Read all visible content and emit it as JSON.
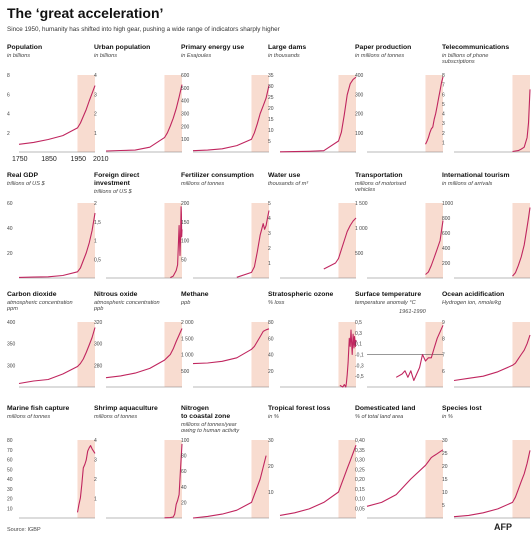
{
  "header": {
    "title": "The ‘great acceleration’",
    "subtitle": "Since 1950, humanity has shifted into high gear, pushing a wide range of indicators sharply higher"
  },
  "footer": {
    "source": "Source: IGBP",
    "logo": "AFP"
  },
  "colors": {
    "line": "#c0265f",
    "highlight": "#f8dcd0",
    "axis": "#777777"
  },
  "highlight_range": [
    1950,
    2010
  ],
  "x_ticks": [
    "1750",
    "1850",
    "1950",
    "2010"
  ],
  "chart_data": [
    {
      "type": "line",
      "title": "Population",
      "unit": "in billions",
      "ylim": [
        0,
        8
      ],
      "yticks": [
        "2",
        "4",
        "6",
        "8"
      ],
      "series": [
        {
          "x": [
            1750,
            1800,
            1850,
            1900,
            1950,
            1960,
            1970,
            1980,
            1990,
            2000,
            2010
          ],
          "values": [
            0.8,
            1.0,
            1.3,
            1.7,
            2.5,
            3.0,
            3.7,
            4.4,
            5.3,
            6.1,
            6.9
          ]
        }
      ]
    },
    {
      "type": "line",
      "title": "Urban population",
      "unit": "in billions",
      "ylim": [
        0,
        4
      ],
      "yticks": [
        "1",
        "2",
        "3",
        "4"
      ],
      "series": [
        {
          "x": [
            1750,
            1800,
            1850,
            1900,
            1950,
            1960,
            1970,
            1980,
            1990,
            2000,
            2010
          ],
          "values": [
            0.05,
            0.08,
            0.1,
            0.25,
            0.75,
            1.0,
            1.35,
            1.75,
            2.25,
            2.85,
            3.5
          ]
        }
      ]
    },
    {
      "type": "line",
      "title": "Primary energy use",
      "unit": "in Exajoules",
      "ylim": [
        0,
        600
      ],
      "yticks": [
        "100",
        "200",
        "300",
        "400",
        "500",
        "600"
      ],
      "series": [
        {
          "x": [
            1750,
            1800,
            1850,
            1900,
            1950,
            1960,
            1970,
            1980,
            1990,
            2000,
            2010
          ],
          "values": [
            10,
            15,
            25,
            50,
            100,
            150,
            220,
            300,
            360,
            420,
            520
          ]
        }
      ]
    },
    {
      "type": "line",
      "title": "Large dams",
      "unit": "in thousands",
      "ylim": [
        0,
        35
      ],
      "yticks": [
        "5",
        "10",
        "15",
        "20",
        "25",
        "30",
        "35"
      ],
      "series": [
        {
          "x": [
            1750,
            1800,
            1850,
            1900,
            1950,
            1960,
            1970,
            1980,
            1990,
            2000,
            2010
          ],
          "values": [
            0.1,
            0.2,
            0.3,
            0.6,
            5,
            9,
            17,
            26,
            31,
            33,
            34
          ]
        }
      ]
    },
    {
      "type": "line",
      "title": "Paper production",
      "unit": "in millions of tonnes",
      "ylim": [
        0,
        400
      ],
      "yticks": [
        "100",
        "200",
        "300",
        "400"
      ],
      "series": [
        {
          "x": [
            1950,
            1955,
            1960,
            1965,
            1970,
            1975,
            1980,
            1985,
            1990,
            1995,
            2000,
            2005,
            2010
          ],
          "values": [
            40,
            55,
            75,
            100,
            120,
            130,
            170,
            200,
            240,
            280,
            320,
            360,
            390
          ]
        }
      ]
    },
    {
      "type": "line",
      "title": "Telecommunications",
      "unit": "in billions of phone subscriptions",
      "ylim": [
        0,
        8
      ],
      "yticks": [
        "1",
        "2",
        "3",
        "4",
        "5",
        "6",
        "7",
        "8"
      ],
      "series": [
        {
          "x": [
            1950,
            1960,
            1970,
            1980,
            1990,
            2000,
            2005,
            2010
          ],
          "values": [
            0.05,
            0.1,
            0.15,
            0.3,
            0.5,
            1.5,
            3,
            6.5
          ]
        }
      ]
    },
    {
      "type": "line",
      "title": "Real GDP",
      "unit": "trillions of US $",
      "ylim": [
        0,
        60
      ],
      "yticks": [
        "20",
        "40",
        "60"
      ],
      "series": [
        {
          "x": [
            1750,
            1800,
            1850,
            1900,
            1950,
            1960,
            1970,
            1980,
            1990,
            2000,
            2010
          ],
          "values": [
            0.5,
            0.7,
            1,
            2,
            5,
            8,
            14,
            20,
            28,
            38,
            52
          ]
        }
      ]
    },
    {
      "type": "line",
      "title": "Foreign direct investment",
      "unit": "trillions of US $",
      "ylim": [
        0,
        2
      ],
      "yticks": [
        "0,5",
        "1",
        "1,5",
        "2"
      ],
      "series": [
        {
          "x": [
            1970,
            1980,
            1990,
            1995,
            2000,
            2003,
            2005,
            2007,
            2008,
            2009,
            2010
          ],
          "values": [
            0.01,
            0.05,
            0.2,
            0.35,
            1.4,
            0.6,
            1.0,
            1.9,
            1.7,
            1.1,
            1.3
          ]
        }
      ]
    },
    {
      "type": "line",
      "title": "Fertilizer consumption",
      "unit": "millions of tonnes",
      "ylim": [
        0,
        200
      ],
      "yticks": [
        "50",
        "100",
        "150",
        "200"
      ],
      "series": [
        {
          "x": [
            1900,
            1950,
            1960,
            1970,
            1980,
            1985,
            1990,
            1995,
            2000,
            2005,
            2010
          ],
          "values": [
            2,
            15,
            30,
            70,
            115,
            130,
            145,
            130,
            140,
            160,
            180
          ]
        }
      ]
    },
    {
      "type": "line",
      "title": "Water use",
      "unit": "thousands of m³",
      "ylim": [
        0,
        5
      ],
      "yticks": [
        "1",
        "2",
        "3",
        "4",
        "5"
      ],
      "series": [
        {
          "x": [
            1900,
            1920,
            1940,
            1950,
            1960,
            1970,
            1980,
            1990,
            2000,
            2010
          ],
          "values": [
            0.6,
            0.8,
            1.0,
            1.3,
            1.9,
            2.5,
            3.1,
            3.5,
            3.8,
            4.0
          ]
        }
      ]
    },
    {
      "type": "line",
      "title": "Transportation",
      "unit": "millions of motorised vehicles",
      "ylim": [
        0,
        1500
      ],
      "yticks": [
        "500",
        "1 000",
        "1 500"
      ],
      "series": [
        {
          "x": [
            1950,
            1960,
            1970,
            1980,
            1990,
            2000,
            2005,
            2010
          ],
          "values": [
            70,
            120,
            250,
            410,
            580,
            750,
            950,
            1150
          ]
        }
      ]
    },
    {
      "type": "line",
      "title": "International tourism",
      "unit": "in millions of arrivals",
      "ylim": [
        0,
        1000
      ],
      "yticks": [
        "200",
        "400",
        "600",
        "800",
        "1000"
      ],
      "series": [
        {
          "x": [
            1950,
            1960,
            1970,
            1980,
            1990,
            2000,
            2005,
            2010
          ],
          "values": [
            25,
            70,
            165,
            280,
            440,
            680,
            800,
            940
          ]
        }
      ]
    },
    {
      "type": "line",
      "title": "Carbon dioxide",
      "unit": "atmospheric concentration ppm",
      "ylim": [
        270,
        400
      ],
      "yticks": [
        "300",
        "350",
        "400"
      ],
      "series": [
        {
          "x": [
            1750,
            1800,
            1850,
            1900,
            1950,
            1960,
            1970,
            1980,
            1990,
            2000,
            2010
          ],
          "values": [
            277,
            282,
            285,
            296,
            311,
            317,
            326,
            339,
            354,
            369,
            389
          ]
        }
      ]
    },
    {
      "type": "line",
      "title": "Nitrous oxide",
      "unit": "atmospheric concentration ppb",
      "ylim": [
        260,
        330
      ],
      "yticks": [
        "280",
        "300",
        "320"
      ],
      "series": [
        {
          "x": [
            1750,
            1800,
            1850,
            1900,
            1950,
            1960,
            1970,
            1980,
            1990,
            2000,
            2010
          ],
          "values": [
            270,
            272,
            275,
            280,
            289,
            292,
            295,
            301,
            309,
            316,
            323
          ]
        }
      ]
    },
    {
      "type": "line",
      "title": "Methane",
      "unit": "ppb",
      "ylim": [
        0,
        2000
      ],
      "yticks": [
        "500",
        "1 000",
        "1 500",
        "2 000"
      ],
      "series": [
        {
          "x": [
            1750,
            1800,
            1850,
            1900,
            1950,
            1960,
            1970,
            1980,
            1990,
            2000,
            2010
          ],
          "values": [
            720,
            740,
            790,
            900,
            1160,
            1250,
            1400,
            1550,
            1710,
            1760,
            1790
          ]
        }
      ]
    },
    {
      "type": "line",
      "title": "Stratospheric ozone",
      "unit": "% loss",
      "ylim": [
        0,
        80
      ],
      "yticks": [
        "20",
        "40",
        "60",
        "80"
      ],
      "series": [
        {
          "x": [
            1955,
            1960,
            1965,
            1970,
            1975,
            1977,
            1980,
            1983,
            1985,
            1987,
            1990,
            1993,
            1995,
            1997,
            2000,
            2003,
            2005,
            2008,
            2010
          ],
          "values": [
            2,
            1,
            0,
            3,
            0,
            5,
            15,
            30,
            45,
            60,
            50,
            70,
            55,
            40,
            65,
            48,
            62,
            50,
            58
          ]
        }
      ]
    },
    {
      "type": "line",
      "title": "Surface temperature",
      "unit": "temperature anomaly °C",
      "note": "1961-1990",
      "ylim": [
        -0.5,
        0.5
      ],
      "yticks": [
        "-0,5",
        "-0,3",
        "-0,1",
        "0,1",
        "0,3",
        "0,5"
      ],
      "series": [
        {
          "x": [
            1850,
            1870,
            1880,
            1890,
            1900,
            1910,
            1920,
            1930,
            1940,
            1950,
            1960,
            1970,
            1980,
            1990,
            2000,
            2010
          ],
          "values": [
            -0.35,
            -0.3,
            -0.25,
            -0.35,
            -0.25,
            -0.4,
            -0.3,
            -0.2,
            0.0,
            -0.1,
            -0.05,
            -0.05,
            0.1,
            0.25,
            0.35,
            0.45
          ]
        }
      ]
    },
    {
      "type": "line",
      "title": "Ocean acidification",
      "unit": "Hydrogen ion, nmole/kg",
      "ylim": [
        6,
        9
      ],
      "yticks": [
        "6",
        "7",
        "8",
        "9"
      ],
      "series": [
        {
          "x": [
            1750,
            1800,
            1850,
            1900,
            1950,
            1960,
            1970,
            1980,
            1990,
            2000,
            2010
          ],
          "values": [
            6.3,
            6.4,
            6.5,
            6.7,
            7.0,
            7.1,
            7.3,
            7.5,
            7.7,
            8.0,
            8.4
          ]
        }
      ]
    },
    {
      "type": "line",
      "title": "Marine fish capture",
      "unit": "millions of tonnes",
      "ylim": [
        10,
        80
      ],
      "yticks": [
        "10",
        "20",
        "30",
        "40",
        "50",
        "60",
        "70",
        "80"
      ],
      "series": [
        {
          "x": [
            1950,
            1955,
            1960,
            1965,
            1970,
            1975,
            1980,
            1985,
            1990,
            1995,
            2000,
            2005,
            2010
          ],
          "values": [
            15,
            22,
            28,
            40,
            55,
            58,
            62,
            70,
            73,
            75,
            72,
            70,
            68
          ]
        }
      ]
    },
    {
      "type": "line",
      "title": "Shrimp aquaculture",
      "unit": "millions of tonnes",
      "ylim": [
        0,
        4
      ],
      "yticks": [
        "1",
        "2",
        "3",
        "4"
      ],
      "series": [
        {
          "x": [
            1950,
            1970,
            1980,
            1985,
            1990,
            1995,
            2000,
            2005,
            2010
          ],
          "values": [
            0.01,
            0.02,
            0.05,
            0.2,
            0.7,
            0.9,
            1.2,
            2.5,
            3.8
          ]
        }
      ]
    },
    {
      "type": "line",
      "title": "Nitrogen to coastal zone",
      "unit": "millions of tonnes/year owing to human activity",
      "ylim": [
        0,
        100
      ],
      "yticks": [
        "20",
        "40",
        "60",
        "80",
        "100"
      ],
      "series": [
        {
          "x": [
            1750,
            1800,
            1850,
            1900,
            1950,
            1980,
            2000
          ],
          "values": [
            0,
            2,
            5,
            10,
            20,
            50,
            80
          ]
        }
      ]
    },
    {
      "type": "line",
      "title": "Tropical forest loss",
      "unit": "in %",
      "ylim": [
        0,
        30
      ],
      "yticks": [
        "10",
        "20",
        "30"
      ],
      "series": [
        {
          "x": [
            1750,
            1800,
            1850,
            1900,
            1950,
            1960,
            1970,
            1980,
            1990,
            2000,
            2010
          ],
          "values": [
            1,
            2,
            3.5,
            6,
            10,
            13,
            16,
            19,
            22,
            25,
            28
          ]
        }
      ]
    },
    {
      "type": "line",
      "title": "Domesticated land",
      "unit": "% of total land area",
      "ylim": [
        0,
        0.4
      ],
      "yticks": [
        "0,05",
        "0,10",
        "0,15",
        "0,20",
        "0,25",
        "0,30",
        "0,35",
        "0,40"
      ],
      "series": [
        {
          "x": [
            1750,
            1800,
            1850,
            1900,
            1950,
            1960,
            1970,
            1980,
            1990,
            2000,
            2010
          ],
          "values": [
            0.06,
            0.08,
            0.12,
            0.2,
            0.27,
            0.29,
            0.31,
            0.32,
            0.33,
            0.34,
            0.35
          ]
        }
      ]
    },
    {
      "type": "line",
      "title": "Species lost",
      "unit": "in %",
      "ylim": [
        0,
        30
      ],
      "yticks": [
        "5",
        "10",
        "15",
        "20",
        "25",
        "30"
      ],
      "series": [
        {
          "x": [
            1750,
            1800,
            1850,
            1900,
            1950,
            1960,
            1970,
            1980,
            1990,
            2000,
            2010
          ],
          "values": [
            0.5,
            1,
            2,
            3.5,
            6,
            8,
            11,
            14,
            17,
            21,
            26
          ]
        }
      ]
    }
  ]
}
